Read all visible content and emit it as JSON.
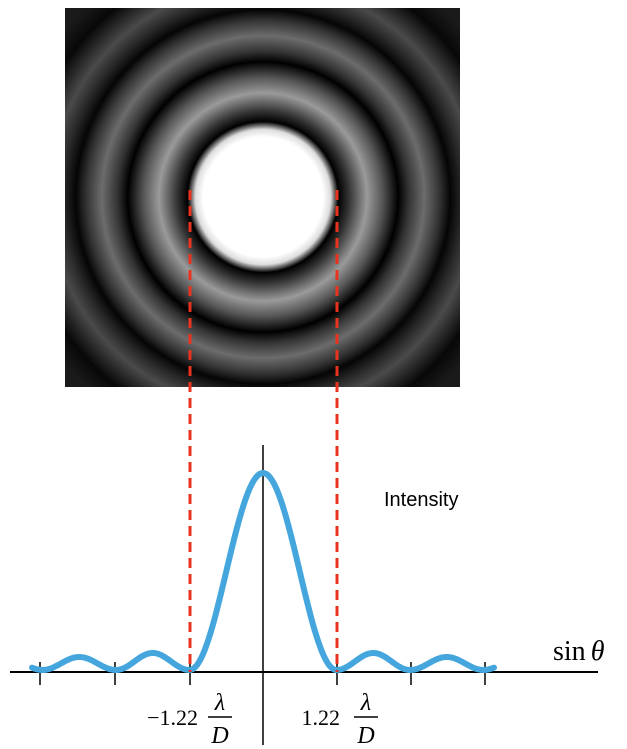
{
  "annotation": "Intensity",
  "axis_label": {
    "function": "sin",
    "variable": "θ"
  },
  "left_marker": {
    "coefficient": "−1.22",
    "numerator": "λ",
    "denominator": "D"
  },
  "right_marker": {
    "coefficient": "1.22",
    "numerator": "λ",
    "denominator": "D"
  }
}
